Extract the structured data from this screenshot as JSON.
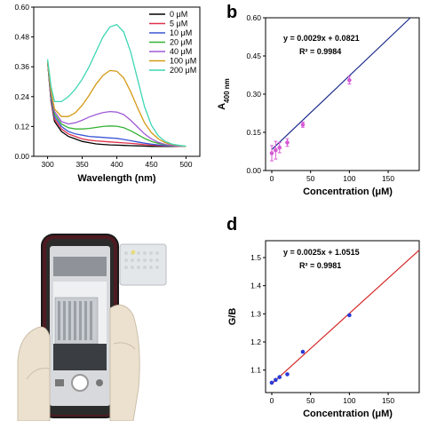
{
  "chart_data": [
    {
      "panel": "",
      "type": "line",
      "xlabel": "Wavelength (nm)",
      "ylabel": "",
      "xlim": [
        280,
        520
      ],
      "ylim": [
        0,
        0.6
      ],
      "xticks": [
        300,
        350,
        400,
        450,
        500
      ],
      "yticks": [
        "0.00",
        "0.12",
        "0.24",
        "0.36",
        "0.48",
        "0.60"
      ],
      "legend_position": "top-right",
      "series": [
        {
          "name": "0 μM",
          "color": "#000000",
          "x": [
            300,
            305,
            310,
            320,
            330,
            340,
            350,
            360,
            370,
            380,
            390,
            400,
            410,
            420,
            430,
            440,
            450,
            460,
            470,
            480,
            490,
            500
          ],
          "y": [
            0.38,
            0.22,
            0.14,
            0.1,
            0.08,
            0.07,
            0.06,
            0.055,
            0.05,
            0.048,
            0.046,
            0.045,
            0.044,
            0.043,
            0.042,
            0.041,
            0.04,
            0.04,
            0.04,
            0.04,
            0.04,
            0.04
          ]
        },
        {
          "name": "5 μM",
          "color": "#e0314b",
          "x": [
            300,
            305,
            310,
            320,
            330,
            340,
            350,
            360,
            370,
            380,
            390,
            400,
            410,
            420,
            430,
            440,
            450,
            460,
            470,
            480,
            490,
            500
          ],
          "y": [
            0.38,
            0.22,
            0.15,
            0.11,
            0.09,
            0.08,
            0.07,
            0.065,
            0.062,
            0.06,
            0.058,
            0.056,
            0.054,
            0.052,
            0.05,
            0.047,
            0.045,
            0.043,
            0.042,
            0.041,
            0.04,
            0.04
          ]
        },
        {
          "name": "10 μM",
          "color": "#3b57d6",
          "x": [
            300,
            305,
            310,
            320,
            330,
            340,
            350,
            360,
            370,
            380,
            390,
            400,
            410,
            420,
            430,
            440,
            450,
            460,
            470,
            480,
            490,
            500
          ],
          "y": [
            0.38,
            0.23,
            0.16,
            0.12,
            0.1,
            0.09,
            0.085,
            0.08,
            0.078,
            0.076,
            0.074,
            0.072,
            0.068,
            0.063,
            0.058,
            0.053,
            0.049,
            0.046,
            0.043,
            0.042,
            0.041,
            0.04
          ]
        },
        {
          "name": "20 μM",
          "color": "#33b233",
          "x": [
            300,
            305,
            310,
            320,
            330,
            340,
            350,
            360,
            370,
            380,
            390,
            400,
            410,
            420,
            430,
            440,
            450,
            460,
            470,
            480,
            490,
            500
          ],
          "y": [
            0.38,
            0.24,
            0.17,
            0.13,
            0.115,
            0.11,
            0.11,
            0.112,
            0.116,
            0.12,
            0.122,
            0.121,
            0.115,
            0.103,
            0.088,
            0.072,
            0.06,
            0.052,
            0.046,
            0.043,
            0.041,
            0.04
          ]
        },
        {
          "name": "40 μM",
          "color": "#a05ad6",
          "x": [
            300,
            305,
            310,
            320,
            330,
            340,
            350,
            360,
            370,
            380,
            390,
            400,
            410,
            420,
            430,
            440,
            450,
            460,
            470,
            480,
            490,
            500
          ],
          "y": [
            0.38,
            0.25,
            0.18,
            0.14,
            0.13,
            0.135,
            0.145,
            0.158,
            0.168,
            0.176,
            0.18,
            0.178,
            0.168,
            0.145,
            0.118,
            0.09,
            0.07,
            0.056,
            0.048,
            0.044,
            0.041,
            0.04
          ]
        },
        {
          "name": "100 μM",
          "color": "#d49a17",
          "x": [
            300,
            305,
            310,
            320,
            330,
            340,
            350,
            360,
            370,
            380,
            390,
            400,
            410,
            420,
            430,
            440,
            450,
            460,
            470,
            480,
            490,
            500
          ],
          "y": [
            0.38,
            0.26,
            0.19,
            0.16,
            0.16,
            0.175,
            0.205,
            0.245,
            0.29,
            0.325,
            0.345,
            0.342,
            0.315,
            0.26,
            0.195,
            0.135,
            0.095,
            0.07,
            0.055,
            0.047,
            0.043,
            0.04
          ]
        },
        {
          "name": "200 μM",
          "color": "#3fd6b4",
          "x": [
            300,
            305,
            310,
            320,
            330,
            340,
            350,
            360,
            370,
            380,
            390,
            400,
            410,
            420,
            430,
            440,
            450,
            460,
            470,
            480,
            490,
            500
          ],
          "y": [
            0.39,
            0.28,
            0.22,
            0.22,
            0.24,
            0.27,
            0.31,
            0.36,
            0.42,
            0.48,
            0.52,
            0.53,
            0.5,
            0.42,
            0.31,
            0.2,
            0.125,
            0.082,
            0.06,
            0.049,
            0.044,
            0.041
          ]
        }
      ]
    },
    {
      "panel": "b",
      "type": "scatter",
      "xlabel": "Concentration (μM)",
      "ylabel_main": "A",
      "ylabel_sub": "400 nm",
      "xlim": [
        -8,
        190
      ],
      "ylim": [
        0,
        0.6
      ],
      "xticks": [
        0,
        50,
        100,
        150
      ],
      "yticks": [
        "0.00",
        "0.15",
        "0.30",
        "0.45",
        "0.60"
      ],
      "equation": "y = 0.0029x + 0.0821",
      "r_squared": "R² = 0.9984",
      "fit": {
        "slope": 0.0029,
        "intercept": 0.0821,
        "color": "#1b2a8a"
      },
      "points": {
        "color": "#d65ad6",
        "x": [
          0,
          5,
          10,
          20,
          40,
          100
        ],
        "y": [
          0.068,
          0.08,
          0.09,
          0.11,
          0.18,
          0.355
        ],
        "err": [
          0.03,
          0.035,
          0.02,
          0.015,
          0.01,
          0.015
        ]
      }
    },
    {
      "panel": "d",
      "type": "scatter",
      "xlabel": "Concentration (μM)",
      "ylabel": "G/B",
      "xlim": [
        -8,
        190
      ],
      "ylim": [
        1.02,
        1.56
      ],
      "xticks": [
        0,
        50,
        100,
        150
      ],
      "yticks": [
        "1.1",
        "1.2",
        "1.3",
        "1.4",
        "1.5"
      ],
      "equation": "y = 0.0025x + 1.0515",
      "r_squared": "R² = 0.9981",
      "fit": {
        "slope": 0.0025,
        "intercept": 1.0515,
        "color": "#d62828"
      },
      "points": {
        "color": "#2a3ad6",
        "x": [
          0,
          5,
          10,
          20,
          40,
          100
        ],
        "y": [
          1.055,
          1.065,
          1.075,
          1.085,
          1.165,
          1.295
        ]
      }
    }
  ]
}
